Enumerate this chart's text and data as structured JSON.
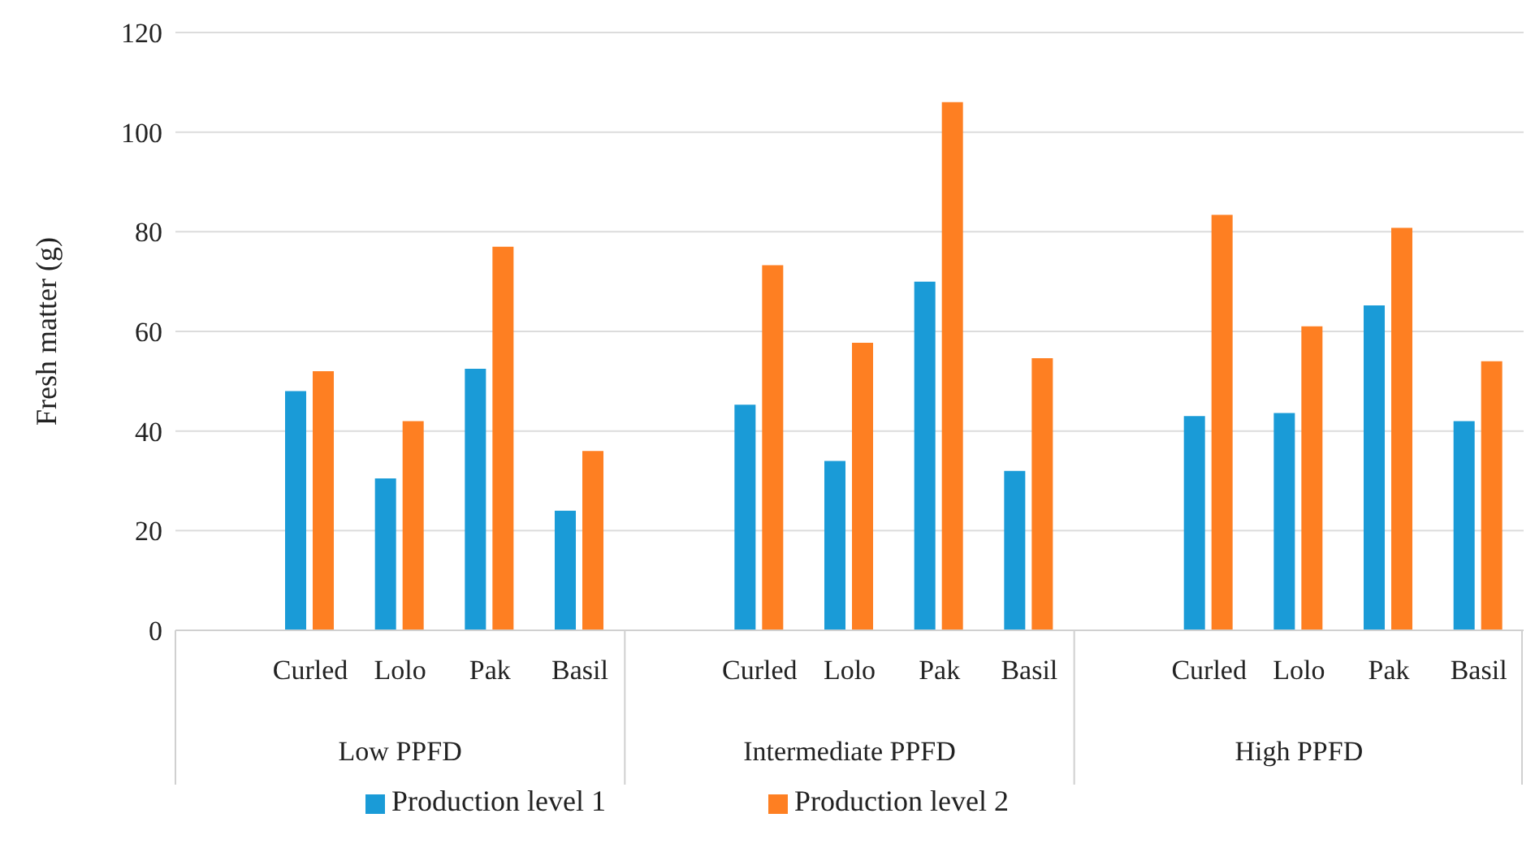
{
  "chart_data": {
    "type": "bar",
    "ylabel": "Fresh matter (g)",
    "categories": [
      null,
      "Curled",
      "Lolo",
      "Pak",
      "Basil",
      null,
      "Curled",
      "Lolo",
      "Pak",
      "Basil",
      null,
      "Curled",
      "Lolo",
      "Pak",
      "Basil"
    ],
    "annotations": [
      "Low PPFD",
      "Intermediate PPFD",
      "High PPFD"
    ],
    "series": [
      {
        "name": "Production level 1",
        "color": "#1a9bd7",
        "values": [
          null,
          48,
          30.5,
          52.5,
          24,
          null,
          45.3,
          34,
          70,
          32,
          null,
          43,
          43.6,
          65.2,
          42
        ]
      },
      {
        "name": "Production level 2",
        "color": "#fe7f22",
        "values": [
          null,
          52,
          42,
          77,
          36,
          null,
          73.3,
          57.7,
          106,
          54.6,
          null,
          83.4,
          61,
          80.8,
          54
        ]
      }
    ],
    "ylim": [
      0,
      120
    ],
    "yticks": [
      0,
      20,
      40,
      60,
      80,
      100,
      120
    ],
    "grid": "y",
    "legend": "bottom"
  }
}
